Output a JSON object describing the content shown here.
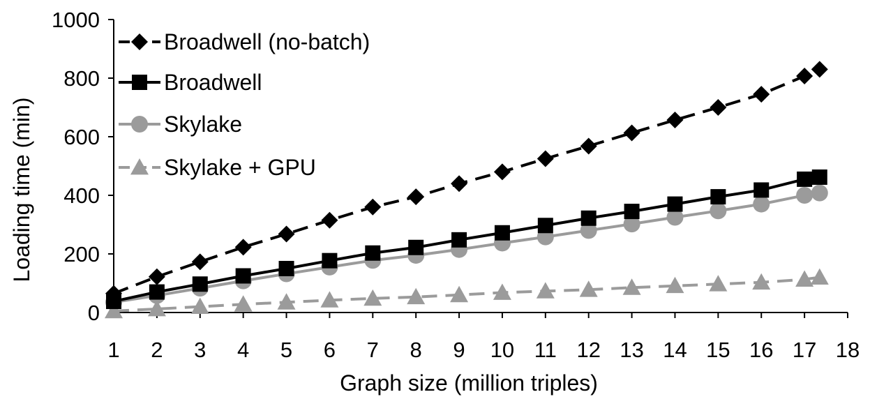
{
  "chart_data": {
    "type": "line",
    "title": "",
    "xlabel": "Graph size (million triples)",
    "ylabel": "Loading time (min)",
    "xlim": [
      1,
      18
    ],
    "ylim": [
      0,
      1000
    ],
    "x_ticks": [
      "1",
      "2",
      "3",
      "4",
      "5",
      "6",
      "7",
      "8",
      "9",
      "10",
      "11",
      "12",
      "13",
      "14",
      "15",
      "16",
      "17",
      "18"
    ],
    "y_ticks": [
      "0",
      "200",
      "400",
      "600",
      "800",
      "1000"
    ],
    "grid": false,
    "legend_position": "top-left",
    "series": [
      {
        "name": "Broadwell (no-batch)",
        "marker": "diamond",
        "line": "dashed",
        "color": "#000000",
        "x": [
          1,
          2,
          3,
          4,
          5,
          6,
          7,
          8,
          9,
          10,
          11,
          12,
          13,
          14,
          15,
          16,
          17,
          17.35
        ],
        "values": [
          65,
          122,
          173,
          223,
          268,
          315,
          360,
          395,
          440,
          480,
          525,
          568,
          613,
          657,
          700,
          745,
          807,
          830
        ]
      },
      {
        "name": "Broadwell",
        "marker": "square",
        "line": "solid",
        "color": "#000000",
        "x": [
          1,
          2,
          3,
          4,
          5,
          6,
          7,
          8,
          9,
          10,
          11,
          12,
          13,
          14,
          15,
          16,
          17,
          17.35
        ],
        "values": [
          38,
          70,
          97,
          125,
          150,
          177,
          203,
          222,
          248,
          272,
          297,
          322,
          345,
          370,
          395,
          418,
          455,
          462
        ]
      },
      {
        "name": "Skylake",
        "marker": "circle",
        "line": "solid",
        "color": "#9b9b9b",
        "x": [
          1,
          2,
          3,
          4,
          5,
          6,
          7,
          8,
          9,
          10,
          11,
          12,
          13,
          14,
          15,
          16,
          17,
          17.35
        ],
        "values": [
          35,
          58,
          83,
          108,
          132,
          155,
          178,
          195,
          215,
          237,
          258,
          280,
          302,
          325,
          347,
          370,
          400,
          408
        ]
      },
      {
        "name": "Skylake + GPU",
        "marker": "triangle",
        "line": "dashed",
        "color": "#9b9b9b",
        "x": [
          1,
          2,
          3,
          4,
          5,
          6,
          7,
          8,
          9,
          10,
          11,
          12,
          13,
          14,
          15,
          16,
          17,
          17.35
        ],
        "values": [
          5,
          12,
          20,
          28,
          35,
          42,
          48,
          53,
          60,
          68,
          73,
          78,
          85,
          91,
          97,
          103,
          113,
          120
        ]
      }
    ]
  }
}
